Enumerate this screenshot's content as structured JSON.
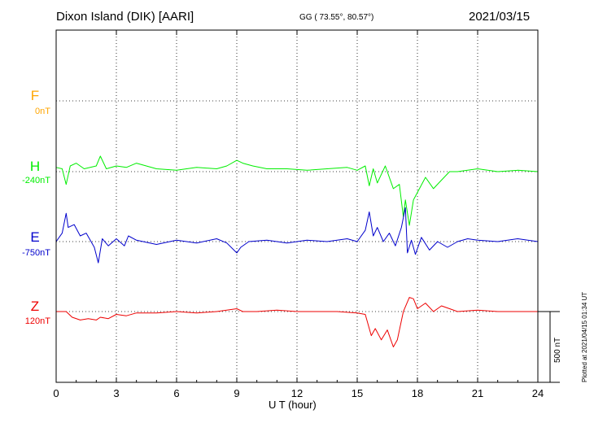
{
  "header": {
    "station": "Dixon Island (DIK)  [AARI]",
    "coords": "GG ( 73.55°,  80.57°)",
    "date": "2021/03/15"
  },
  "plotted": "Plotted at 2021/04/15 01:34 UT",
  "scale_label": "500 nT",
  "components": [
    {
      "name": "F",
      "baseline": "0nT",
      "color": "#ffa500"
    },
    {
      "name": "H",
      "baseline": "-240nT",
      "color": "#00ee00"
    },
    {
      "name": "E",
      "baseline": "-750nT",
      "color": "#0000cc"
    },
    {
      "name": "Z",
      "baseline": "120nT",
      "color": "#ee0000"
    }
  ],
  "chart_data": {
    "type": "line",
    "xlabel": "U T (hour)",
    "xlim": [
      0,
      24
    ],
    "xticks": [
      0,
      3,
      6,
      9,
      12,
      15,
      18,
      21,
      24
    ],
    "scale_nT": 500,
    "series": [
      {
        "name": "H",
        "color": "#00ee00",
        "x": [
          0,
          0.3,
          0.5,
          0.7,
          1.0,
          1.4,
          2.0,
          2.2,
          2.5,
          3.0,
          3.5,
          4.0,
          5.0,
          6.0,
          7.0,
          8.0,
          8.5,
          9.0,
          9.3,
          9.8,
          10.5,
          11.5,
          12.5,
          13.5,
          14.5,
          15.0,
          15.4,
          15.6,
          15.8,
          16.0,
          16.4,
          16.8,
          17.1,
          17.3,
          17.4,
          17.6,
          17.8,
          18.1,
          18.4,
          18.8,
          19.2,
          19.6,
          20.0,
          21.0,
          22.0,
          23.0,
          24.0
        ],
        "y": [
          30,
          20,
          -90,
          40,
          60,
          20,
          40,
          110,
          20,
          40,
          30,
          60,
          20,
          10,
          30,
          20,
          40,
          80,
          60,
          40,
          20,
          20,
          10,
          20,
          30,
          10,
          40,
          -100,
          20,
          -80,
          40,
          -120,
          -90,
          -320,
          -200,
          -380,
          -200,
          -120,
          -40,
          -120,
          -60,
          0,
          0,
          20,
          0,
          10,
          0
        ]
      },
      {
        "name": "E",
        "color": "#0000cc",
        "x": [
          0,
          0.3,
          0.5,
          0.6,
          0.9,
          1.2,
          1.5,
          1.9,
          2.1,
          2.3,
          2.6,
          3.0,
          3.4,
          3.6,
          4.0,
          5.0,
          6.0,
          7.0,
          8.0,
          8.5,
          9.0,
          9.2,
          9.6,
          10.5,
          11.5,
          12.5,
          13.5,
          14.5,
          15.0,
          15.4,
          15.6,
          15.8,
          16.0,
          16.3,
          16.6,
          16.9,
          17.2,
          17.4,
          17.5,
          17.7,
          17.9,
          18.2,
          18.6,
          19.0,
          19.5,
          20.0,
          20.5,
          21.0,
          22.0,
          23.0,
          24.0
        ],
        "y": [
          0,
          60,
          200,
          100,
          120,
          40,
          60,
          -40,
          -150,
          20,
          -30,
          20,
          -30,
          40,
          10,
          -20,
          10,
          -10,
          20,
          -10,
          -80,
          -40,
          0,
          10,
          -10,
          10,
          0,
          20,
          0,
          80,
          210,
          40,
          100,
          0,
          60,
          -30,
          100,
          240,
          -80,
          10,
          -90,
          30,
          -60,
          0,
          -40,
          0,
          20,
          10,
          0,
          20,
          0
        ]
      },
      {
        "name": "Z",
        "color": "#ee0000",
        "x": [
          0,
          0.5,
          0.8,
          1.2,
          1.6,
          2.0,
          2.2,
          2.6,
          3.0,
          3.5,
          4.0,
          5.0,
          6.0,
          7.0,
          8.0,
          9.0,
          9.3,
          10.0,
          11.0,
          12.0,
          13.0,
          14.0,
          15.0,
          15.4,
          15.7,
          15.9,
          16.2,
          16.5,
          16.8,
          17.0,
          17.3,
          17.6,
          17.8,
          18.0,
          18.4,
          18.8,
          19.2,
          19.6,
          20.0,
          21.0,
          22.0,
          23.0,
          24.0
        ],
        "y": [
          0,
          0,
          -40,
          -60,
          -50,
          -60,
          -40,
          -50,
          -20,
          -30,
          -10,
          -10,
          0,
          -10,
          0,
          20,
          0,
          0,
          10,
          0,
          0,
          0,
          -10,
          -20,
          -170,
          -120,
          -200,
          -130,
          -250,
          -200,
          0,
          100,
          90,
          20,
          60,
          0,
          40,
          20,
          0,
          10,
          0,
          0,
          0
        ]
      }
    ]
  }
}
